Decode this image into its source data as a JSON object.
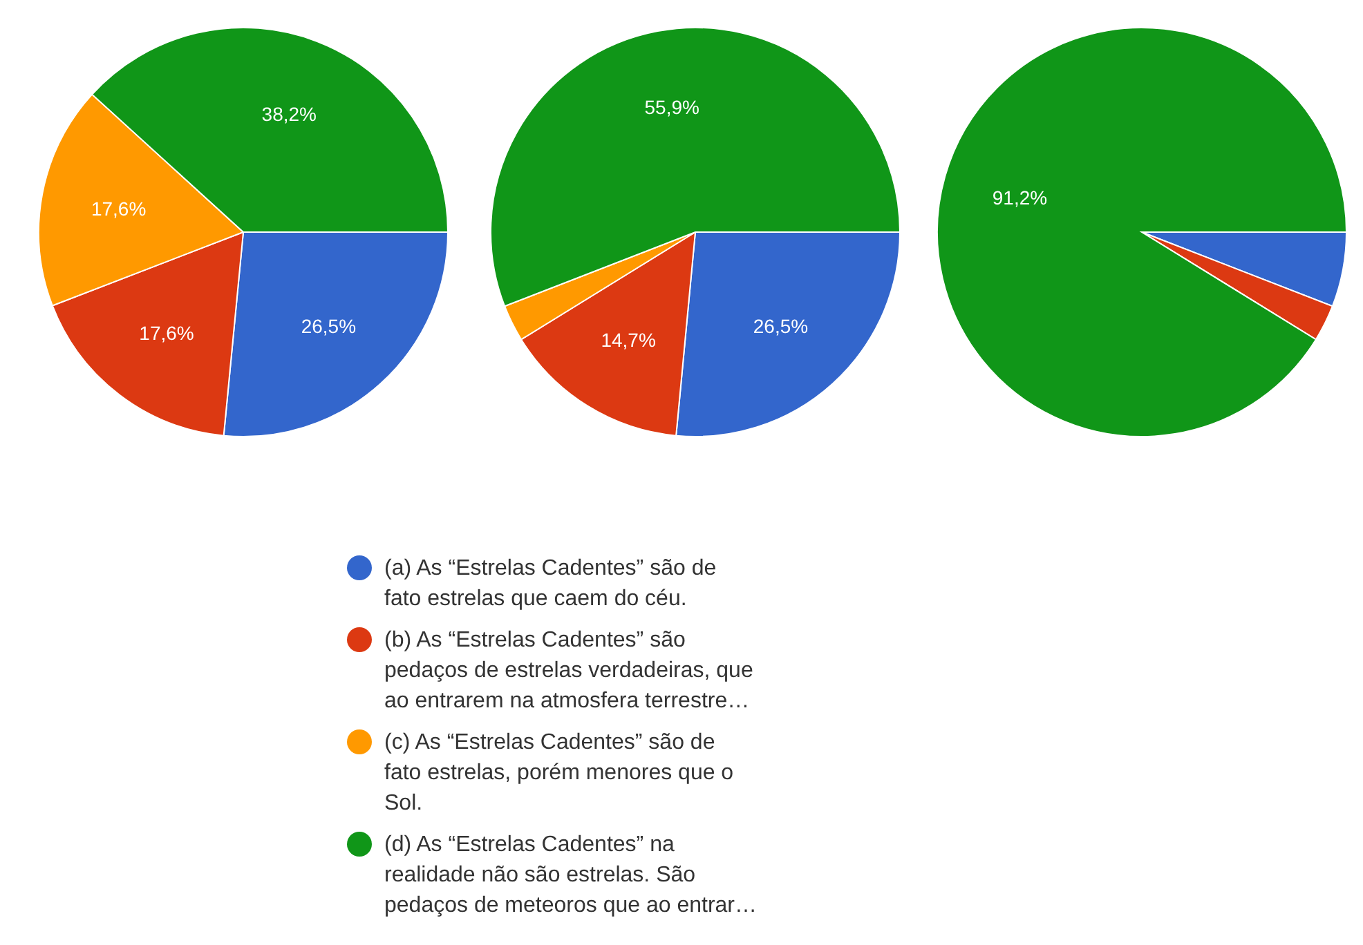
{
  "chart_data": [
    {
      "type": "pie",
      "categories": [
        "(a) As “Estrelas Cadentes” são de fato estrelas que caem do céu.",
        "(b) As “Estrelas Cadentes” são pedaços de estrelas verdadeiras, que ao entrarem na atmosfera terrestre…",
        "(c) As “Estrelas Cadentes” são de fato estrelas, porém menores que o Sol.",
        "(d) As “Estrelas Cadentes” na realidade não são estrelas. São pedaços de meteoros que ao entrar…"
      ],
      "values": [
        26.5,
        17.6,
        17.6,
        38.2
      ],
      "colors": [
        "#3366cc",
        "#dc3912",
        "#ff9900",
        "#109618"
      ],
      "value_labels": [
        "26,5%",
        "17,6%",
        "17,6%",
        "38,2%"
      ],
      "legend": "bottom"
    },
    {
      "type": "pie",
      "categories": [
        null,
        null,
        null,
        null
      ],
      "values": [
        26.5,
        14.7,
        2.9,
        55.9
      ],
      "colors": [
        "#3366cc",
        "#dc3912",
        "#ff9900",
        "#109618"
      ],
      "value_labels": [
        "26,5%",
        "14,7%",
        null,
        "55,9%"
      ]
    },
    {
      "type": "pie",
      "categories": [
        null,
        null,
        null,
        null
      ],
      "values": [
        5.9,
        2.9,
        0,
        91.2
      ],
      "colors": [
        "#3366cc",
        "#dc3912",
        "#ff9900",
        "#109618"
      ],
      "value_labels": [
        null,
        null,
        null,
        "91,2%"
      ]
    }
  ]
}
